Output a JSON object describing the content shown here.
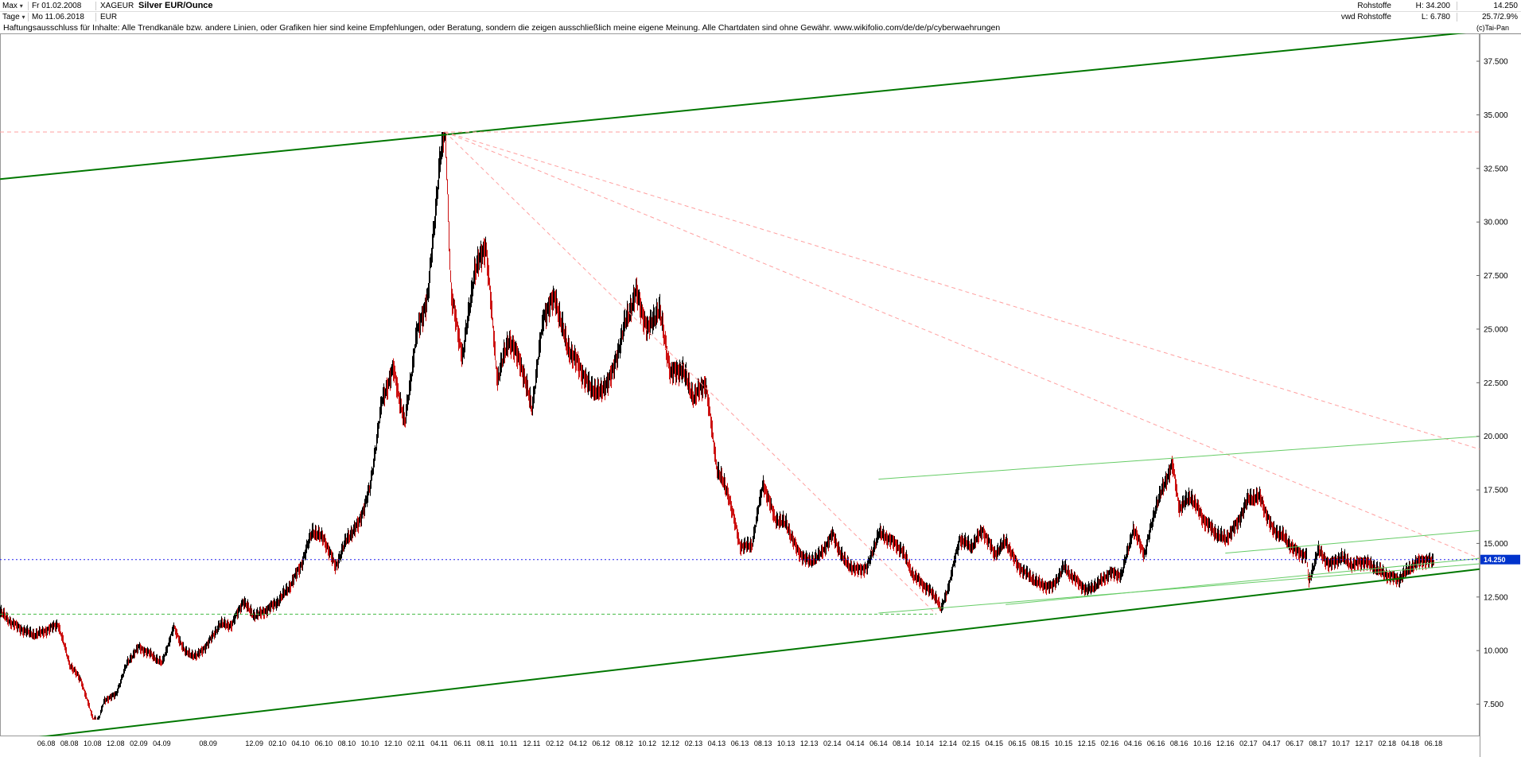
{
  "header": {
    "range_selector": "Max",
    "date_from": "Fr 01.02.2008",
    "symbol": "XAGEUR",
    "title": "Silver EUR/Ounce",
    "period_selector": "Tage",
    "date_to": "Mo 11.06.2018",
    "currency": "EUR",
    "source_line1": "Rohstoffe",
    "source_line2": "vwd Rohstoffe",
    "high_label": "H: 34.200",
    "low_label": "L: 6.780",
    "last_price": "14.250",
    "change_label": "25.7/2.9%"
  },
  "disclaimer": {
    "text": "Haftungsausschluss für Inhalte: Alle Trendkanäle bzw. andere Linien, oder Grafiken hier sind keine Empfehlungen, oder Beratung, sondern die zeigen ausschließlich meine eigene Meinung. Alle Chartdaten sind ohne Gewähr.  www.wikifolio.com/de/de/p/cyberwaehrungen",
    "copyright": "(c)Tai-Pan"
  },
  "chart_data": {
    "type": "candlestick",
    "title": "Silver EUR/Ounce",
    "x_unit": "months since 2008-02",
    "price_range": {
      "high": 34.2,
      "low": 6.78,
      "last": 14.25
    },
    "domain": {
      "m_min": 0,
      "m_max": 128,
      "p_min": 6.0,
      "p_max": 38.8
    },
    "candle_colors": {
      "up": "#000000",
      "down": "#cc1111"
    },
    "series": [
      {
        "name": "XAGEUR",
        "anchors": [
          [
            0,
            11.8
          ],
          [
            1,
            11.2
          ],
          [
            2,
            10.9
          ],
          [
            3,
            10.8
          ],
          [
            4,
            11.0
          ],
          [
            5,
            11.2
          ],
          [
            6,
            9.3
          ],
          [
            7,
            8.6
          ],
          [
            8,
            6.9
          ],
          [
            8.5,
            6.78
          ],
          [
            9,
            7.7
          ],
          [
            10,
            7.9
          ],
          [
            11,
            9.4
          ],
          [
            12,
            10.2
          ],
          [
            13,
            9.9
          ],
          [
            14,
            9.4
          ],
          [
            15,
            11.0
          ],
          [
            16,
            9.9
          ],
          [
            17,
            9.8
          ],
          [
            18,
            10.4
          ],
          [
            19,
            11.2
          ],
          [
            20,
            11.1
          ],
          [
            21,
            12.3
          ],
          [
            22,
            11.7
          ],
          [
            23,
            11.9
          ],
          [
            24,
            12.2
          ],
          [
            25,
            12.9
          ],
          [
            26,
            14.0
          ],
          [
            27,
            15.7
          ],
          [
            28,
            15.2
          ],
          [
            29,
            13.8
          ],
          [
            30,
            15.2
          ],
          [
            31,
            16.0
          ],
          [
            32,
            17.7
          ],
          [
            33,
            21.5
          ],
          [
            34,
            23.0
          ],
          [
            35,
            20.6
          ],
          [
            36,
            24.9
          ],
          [
            37,
            26.6
          ],
          [
            38,
            32.5
          ],
          [
            38.5,
            34.2
          ],
          [
            39,
            26.5
          ],
          [
            40,
            23.8
          ],
          [
            41,
            27.8
          ],
          [
            42,
            28.9
          ],
          [
            43,
            22.5
          ],
          [
            44,
            24.5
          ],
          [
            45,
            23.6
          ],
          [
            46,
            21.4
          ],
          [
            47,
            25.5
          ],
          [
            48,
            26.3
          ],
          [
            49,
            24.3
          ],
          [
            50,
            23.5
          ],
          [
            51,
            22.3
          ],
          [
            52,
            21.9
          ],
          [
            53,
            22.9
          ],
          [
            54,
            25.3
          ],
          [
            55,
            26.9
          ],
          [
            56,
            24.9
          ],
          [
            57,
            25.8
          ],
          [
            58,
            22.9
          ],
          [
            59,
            23.3
          ],
          [
            60,
            21.9
          ],
          [
            61,
            22.4
          ],
          [
            62,
            18.4
          ],
          [
            63,
            17.3
          ],
          [
            64,
            15.0
          ],
          [
            65,
            14.9
          ],
          [
            66,
            17.7
          ],
          [
            67,
            16.1
          ],
          [
            68,
            16.0
          ],
          [
            69,
            14.7
          ],
          [
            70,
            14.1
          ],
          [
            71,
            14.4
          ],
          [
            72,
            15.4
          ],
          [
            73,
            14.3
          ],
          [
            74,
            13.8
          ],
          [
            75,
            13.8
          ],
          [
            76,
            15.4
          ],
          [
            77,
            15.2
          ],
          [
            78,
            14.8
          ],
          [
            79,
            13.5
          ],
          [
            80,
            12.9
          ],
          [
            81,
            12.4
          ],
          [
            81.4,
            11.9
          ],
          [
            82,
            13.0
          ],
          [
            83,
            15.3
          ],
          [
            84,
            14.8
          ],
          [
            85,
            15.5
          ],
          [
            86,
            14.5
          ],
          [
            87,
            15.2
          ],
          [
            88,
            14.0
          ],
          [
            89,
            13.4
          ],
          [
            90,
            13.0
          ],
          [
            91,
            13.0
          ],
          [
            92,
            14.0
          ],
          [
            93,
            13.3
          ],
          [
            94,
            12.7
          ],
          [
            95,
            13.1
          ],
          [
            96,
            13.7
          ],
          [
            97,
            13.6
          ],
          [
            98,
            15.6
          ],
          [
            99,
            14.4
          ],
          [
            100,
            16.8
          ],
          [
            101,
            18.3
          ],
          [
            101.4,
            18.8
          ],
          [
            102,
            16.7
          ],
          [
            103,
            17.1
          ],
          [
            104,
            16.1
          ],
          [
            105,
            15.6
          ],
          [
            106,
            15.3
          ],
          [
            107,
            15.9
          ],
          [
            108,
            17.0
          ],
          [
            109,
            17.1
          ],
          [
            110,
            15.8
          ],
          [
            111,
            15.4
          ],
          [
            112,
            14.6
          ],
          [
            113,
            14.3
          ],
          [
            113.2,
            13.1
          ],
          [
            114,
            14.7
          ],
          [
            115,
            14.1
          ],
          [
            116,
            14.4
          ],
          [
            117,
            13.9
          ],
          [
            118,
            14.1
          ],
          [
            119,
            13.9
          ],
          [
            120,
            13.6
          ],
          [
            121,
            13.3
          ],
          [
            122,
            13.8
          ],
          [
            123,
            14.2
          ],
          [
            124,
            14.25
          ]
        ]
      }
    ],
    "overlays": [
      {
        "name": "main-uptrend-channel-upper",
        "color": "#007700",
        "width": 2,
        "dash": null,
        "from": [
          0,
          32.0
        ],
        "to": [
          128,
          38.9
        ]
      },
      {
        "name": "main-uptrend-channel-lower",
        "color": "#007700",
        "width": 2,
        "dash": null,
        "from": [
          0,
          5.75
        ],
        "to": [
          128,
          13.8
        ]
      },
      {
        "name": "ath-resistance-horizontal",
        "color": "#ff9f9f",
        "width": 1,
        "dash": "5 4",
        "from": [
          0,
          34.2
        ],
        "to": [
          128,
          34.2
        ]
      },
      {
        "name": "downtrend-fan-1",
        "color": "#ff9f9f",
        "width": 1,
        "dash": "5 4",
        "from": [
          38.5,
          34.2
        ],
        "to": [
          128,
          19.4
        ]
      },
      {
        "name": "downtrend-fan-2",
        "color": "#ff9f9f",
        "width": 1,
        "dash": "5 4",
        "from": [
          38.5,
          34.2
        ],
        "to": [
          128,
          14.3
        ]
      },
      {
        "name": "downtrend-fan-3",
        "color": "#ff9f9f",
        "width": 1,
        "dash": "5 4",
        "from": [
          38.5,
          34.2
        ],
        "to": [
          81,
          11.7
        ]
      },
      {
        "name": "support-horizontal-dashed",
        "color": "#44bb44",
        "width": 1,
        "dash": "4 3",
        "from": [
          0,
          11.7
        ],
        "to": [
          81,
          11.7
        ]
      },
      {
        "name": "minor-uptrend-upper",
        "color": "#66cc66",
        "width": 1,
        "dash": null,
        "from": [
          76,
          18.0
        ],
        "to": [
          128,
          20.0
        ]
      },
      {
        "name": "minor-uptrend-lower-1",
        "color": "#66cc66",
        "width": 1,
        "dash": null,
        "from": [
          76,
          11.75
        ],
        "to": [
          128,
          14.05
        ]
      },
      {
        "name": "minor-uptrend-lower-2",
        "color": "#66cc66",
        "width": 1,
        "dash": null,
        "from": [
          87,
          12.15
        ],
        "to": [
          128,
          14.3
        ]
      },
      {
        "name": "minor-uptrend-short",
        "color": "#66cc66",
        "width": 1,
        "dash": null,
        "from": [
          106,
          14.55
        ],
        "to": [
          128,
          15.6
        ]
      },
      {
        "name": "last-price-line",
        "color": "#2222ee",
        "width": 1,
        "dash": "2 3",
        "from": [
          0,
          14.25
        ],
        "to": [
          128,
          14.25
        ]
      }
    ],
    "y_axis": {
      "labels": [
        "37.500",
        "35.000",
        "32.500",
        "30.000",
        "27.500",
        "25.000",
        "22.500",
        "20.000",
        "17.500",
        "15.000",
        "12.500",
        "10.000",
        "7.500"
      ],
      "prices": [
        37.5,
        35.0,
        32.5,
        30.0,
        27.5,
        25.0,
        22.5,
        20.0,
        17.5,
        15.0,
        12.5,
        10.0,
        7.5
      ]
    },
    "x_axis": {
      "labels": [
        "06.08",
        "08.08",
        "10.08",
        "12.08",
        "02.09",
        "04.09",
        "08.09",
        "12.09",
        "02.10",
        "04.10",
        "06.10",
        "08.10",
        "10.10",
        "12.10",
        "02.11",
        "04.11",
        "06.11",
        "08.11",
        "10.11",
        "12.11",
        "02.12",
        "04.12",
        "06.12",
        "08.12",
        "10.12",
        "12.12",
        "02.13",
        "04.13",
        "06.13",
        "08.13",
        "10.13",
        "12.13",
        "02.14",
        "04.14",
        "06.14",
        "08.14",
        "10.14",
        "12.14",
        "02.15",
        "04.15",
        "06.15",
        "08.15",
        "10.15",
        "12.15",
        "02.16",
        "04.16",
        "06.16",
        "08.16",
        "10.16",
        "12.16",
        "02.17",
        "04.17",
        "06.17",
        "08.17",
        "10.17",
        "12.17",
        "02.18",
        "04.18",
        "06.18"
      ],
      "months": [
        4,
        6,
        8,
        10,
        12,
        14,
        18,
        22,
        24,
        26,
        28,
        30,
        32,
        34,
        36,
        38,
        40,
        42,
        44,
        46,
        48,
        50,
        52,
        54,
        56,
        58,
        60,
        62,
        64,
        66,
        68,
        70,
        72,
        74,
        76,
        78,
        80,
        82,
        84,
        86,
        88,
        90,
        92,
        94,
        96,
        98,
        100,
        102,
        104,
        106,
        108,
        110,
        112,
        114,
        116,
        118,
        120,
        122,
        124
      ]
    },
    "last_price_marker": {
      "price": 14.25,
      "label": "14.250",
      "bg": "#0033cc",
      "fg": "#ffffff"
    }
  }
}
